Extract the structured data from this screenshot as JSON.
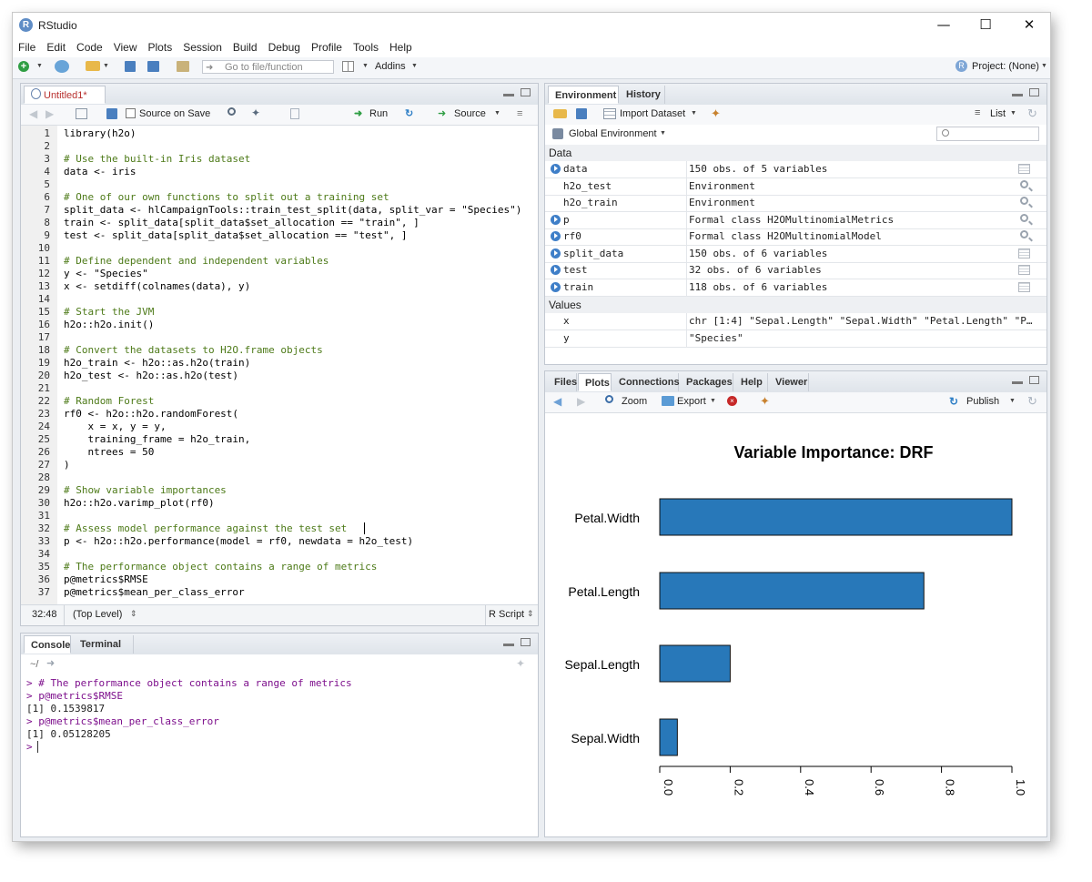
{
  "window": {
    "title": "RStudio"
  },
  "menu": [
    "File",
    "Edit",
    "Code",
    "View",
    "Plots",
    "Session",
    "Build",
    "Debug",
    "Profile",
    "Tools",
    "Help"
  ],
  "main_toolbar": {
    "goto_placeholder": "Go to file/function",
    "addins": "Addins",
    "project": "Project: (None)"
  },
  "source": {
    "tab": "Untitled1*",
    "source_on_save": "Source on Save",
    "run": "Run",
    "source_btn": "Source",
    "status_pos": "32:48",
    "status_scope": "(Top Level)",
    "status_type": "R Script",
    "lines": [
      "library(h2o)",
      "",
      "# Use the built-in Iris dataset",
      "data <- iris",
      "",
      "# One of our own functions to split out a training set",
      "split_data <- hlCampaignTools::train_test_split(data, split_var = \"Species\")",
      "train <- split_data[split_data$set_allocation == \"train\", ]",
      "test <- split_data[split_data$set_allocation == \"test\", ]",
      "",
      "# Define dependent and independent variables",
      "y <- \"Species\"",
      "x <- setdiff(colnames(data), y)",
      "",
      "# Start the JVM",
      "h2o::h2o.init()",
      "",
      "# Convert the datasets to H2O.frame objects",
      "h2o_train <- h2o::as.h2o(train)",
      "h2o_test <- h2o::as.h2o(test)",
      "",
      "# Random Forest",
      "rf0 <- h2o::h2o.randomForest(",
      "    x = x, y = y,",
      "    training_frame = h2o_train,",
      "    ntrees = 50",
      ")",
      "",
      "# Show variable importances",
      "h2o::h2o.varimp_plot(rf0)",
      "",
      "# Assess model performance against the test set",
      "p <- h2o::h2o.performance(model = rf0, newdata = h2o_test)",
      "",
      "# The performance object contains a range of metrics",
      "p@metrics$RMSE",
      "p@metrics$mean_per_class_error"
    ]
  },
  "console": {
    "tabs": [
      "Console",
      "Terminal"
    ],
    "path": "~/",
    "lines": [
      "> # The performance object contains a range of metrics",
      "> p@metrics$RMSE",
      "[1] 0.1539817",
      "> p@metrics$mean_per_class_error",
      "[1] 0.05128205",
      ">"
    ]
  },
  "environment": {
    "tabs": [
      "Environment",
      "History"
    ],
    "import_dataset": "Import Dataset",
    "list_label": "List",
    "scope": "Global Environment",
    "data_header": "Data",
    "values_header": "Values",
    "data": [
      {
        "name": "data",
        "value": "150 obs. of 5 variables",
        "icon": "expand",
        "right": "grid"
      },
      {
        "name": "h2o_test",
        "value": "Environment",
        "icon": "none",
        "right": "search"
      },
      {
        "name": "h2o_train",
        "value": "Environment",
        "icon": "none",
        "right": "search"
      },
      {
        "name": "p",
        "value": "Formal class H2OMultinomialMetrics",
        "icon": "expand",
        "right": "search"
      },
      {
        "name": "rf0",
        "value": "Formal class H2OMultinomialModel",
        "icon": "expand",
        "right": "search"
      },
      {
        "name": "split_data",
        "value": "150 obs. of 6 variables",
        "icon": "expand",
        "right": "grid"
      },
      {
        "name": "test",
        "value": "32 obs. of 6 variables",
        "icon": "expand",
        "right": "grid"
      },
      {
        "name": "train",
        "value": "118 obs. of 6 variables",
        "icon": "expand",
        "right": "grid"
      }
    ],
    "values": [
      {
        "name": "x",
        "value": "chr [1:4] \"Sepal.Length\" \"Sepal.Width\" \"Petal.Length\" \"P…"
      },
      {
        "name": "y",
        "value": "\"Species\""
      }
    ]
  },
  "files": {
    "tabs": [
      "Files",
      "Plots",
      "Connections",
      "Packages",
      "Help",
      "Viewer"
    ],
    "zoom": "Zoom",
    "export": "Export",
    "publish": "Publish"
  },
  "chart_data": {
    "type": "bar",
    "orientation": "horizontal",
    "title": "Variable Importance: DRF",
    "categories": [
      "Petal.Width",
      "Petal.Length",
      "Sepal.Length",
      "Sepal.Width"
    ],
    "values": [
      1.0,
      0.75,
      0.2,
      0.05
    ],
    "xlim": [
      0,
      1
    ],
    "ticks": [
      "0.0",
      "0.2",
      "0.4",
      "0.6",
      "0.8",
      "1.0"
    ],
    "bar_color": "#2878b9"
  }
}
